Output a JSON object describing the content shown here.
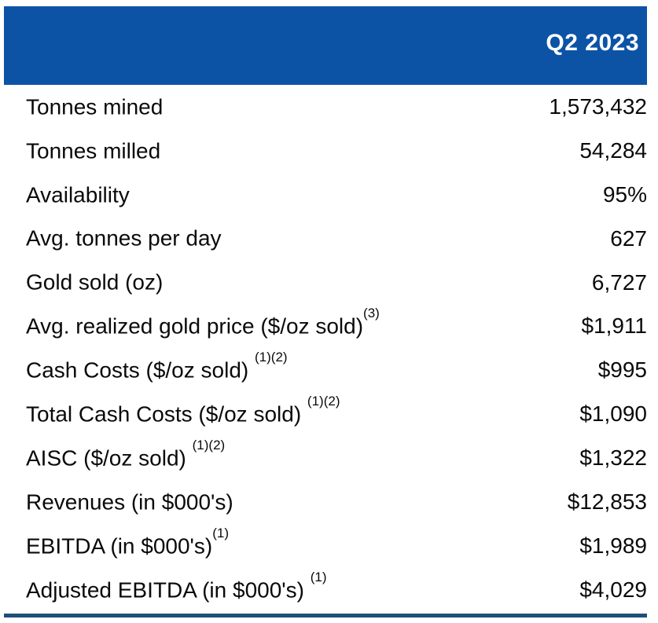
{
  "header": {
    "title": "Q2 2023",
    "bg_color": "#0C53A6",
    "text_color": "#FFFFFF"
  },
  "rows": [
    {
      "label": "Tonnes mined",
      "sup": "",
      "value": "1,573,432"
    },
    {
      "label": "Tonnes milled",
      "sup": "",
      "value": "54,284"
    },
    {
      "label": "Availability",
      "sup": "",
      "value": "95%"
    },
    {
      "label": "Avg. tonnes per day",
      "sup": "",
      "value": "627"
    },
    {
      "label": "Gold sold (oz)",
      "sup": "",
      "value": "6,727"
    },
    {
      "label": "Avg. realized gold price ($/oz sold)",
      "sup": "(3)",
      "value": "$1,911"
    },
    {
      "label": "Cash Costs ($/oz sold) ",
      "sup": "(1)(2)",
      "value": "$995"
    },
    {
      "label": "Total Cash Costs ($/oz sold) ",
      "sup": "(1)(2)",
      "value": "$1,090"
    },
    {
      "label": "AISC ($/oz sold) ",
      "sup": "(1)(2)",
      "value": "$1,322"
    },
    {
      "label": "Revenues (in $000's)",
      "sup": "",
      "value": "$12,853"
    },
    {
      "label": "EBITDA (in $000's)",
      "sup": "(1)",
      "value": "$1,989"
    },
    {
      "label": "Adjusted EBITDA (in $000's) ",
      "sup": "(1)",
      "value": "$4,029"
    }
  ],
  "footer": {
    "line_color": "#1E4E79"
  }
}
